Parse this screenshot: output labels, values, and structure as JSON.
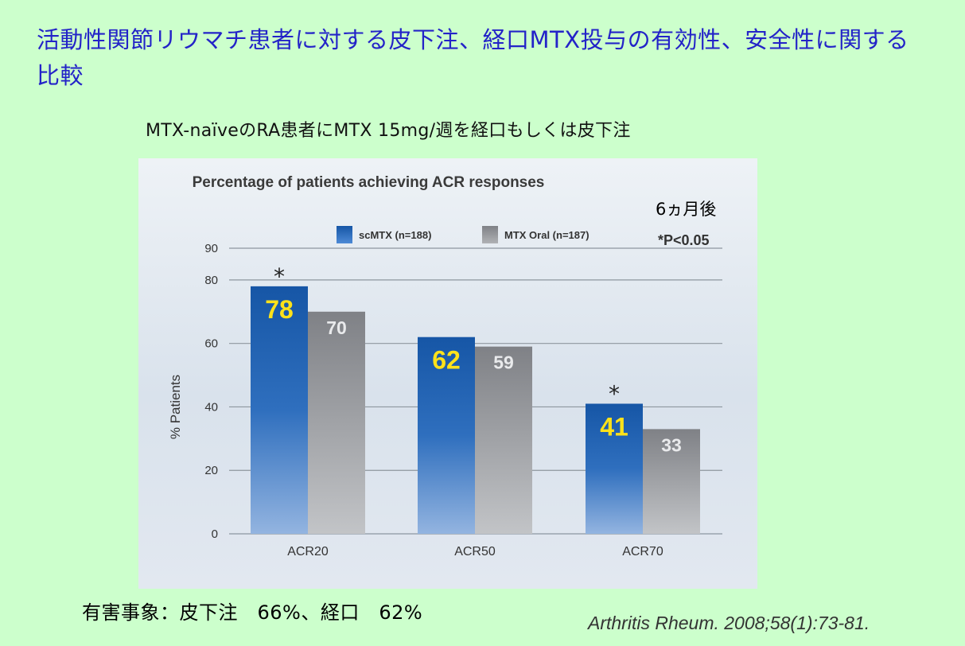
{
  "slide": {
    "title": "活動性関節リウマチ患者に対する皮下注、経口MTX投与の有効性、安全性に関する比較",
    "subtitle": "MTX-naïveのRA患者にMTX 15mg/週を経口もしくは皮下注",
    "adverse_events": "有害事象：皮下注　66%、経口　62%",
    "citation": "Arthritis Rheum. 2008;58(1):73-81."
  },
  "chart_data": {
    "type": "bar",
    "title": "Percentage of patients achieving ACR responses",
    "annotation": "6ヵ月後",
    "significance_note": "*P<0.05",
    "ylabel": "% Patients",
    "xlabel": "",
    "ylim": [
      0,
      90
    ],
    "yticks": [
      0,
      20,
      40,
      60,
      80,
      90
    ],
    "grid": true,
    "legend_position": "top-right",
    "categories": [
      "ACR20",
      "ACR50",
      "ACR70"
    ],
    "series": [
      {
        "name": "scMTX (n=188)",
        "values": [
          78,
          62,
          41
        ],
        "significant": [
          true,
          false,
          true
        ],
        "color": "#1a5aa8"
      },
      {
        "name": "MTX Oral (n=187)",
        "values": [
          70,
          59,
          33
        ],
        "significant": [
          false,
          false,
          false
        ],
        "color": "#8a8c90"
      }
    ]
  }
}
